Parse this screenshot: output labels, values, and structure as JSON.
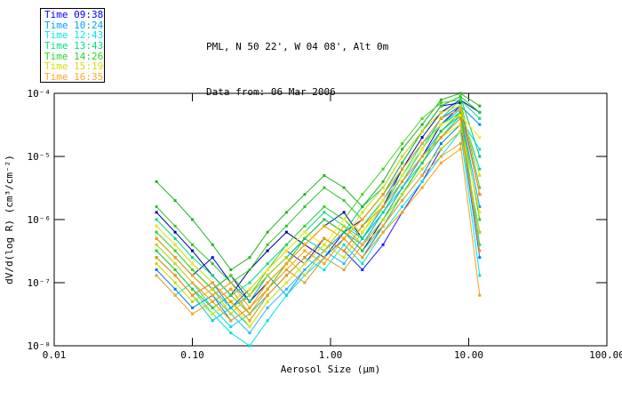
{
  "header": {
    "line1": "PML, N 50 22', W 04 08', Alt 0m",
    "line2": "Data from: 06 Mar 2006"
  },
  "legend": {
    "position": "outside-top-left",
    "items": [
      {
        "label": "Time 09:38",
        "color": "#0000ff"
      },
      {
        "label": "Time 10:24",
        "color": "#00a0ff"
      },
      {
        "label": "Time 12:43",
        "color": "#00e8e8"
      },
      {
        "label": "Time 13:43",
        "color": "#00e080"
      },
      {
        "label": "Time 14:26",
        "color": "#2ed02e"
      },
      {
        "label": "Time 15:19",
        "color": "#d4e000"
      },
      {
        "label": "Time 16:35",
        "color": "#ffa428"
      }
    ]
  },
  "chart_data": {
    "type": "line",
    "xscale": "log",
    "yscale": "log",
    "grid": false,
    "marker": "square",
    "xlim": [
      0.01,
      100
    ],
    "ylim": [
      1e-08,
      0.0001
    ],
    "xlabel": "Aerosol Size (μm)",
    "ylabel": "dV/d(log R) (cm³/cm⁻²)",
    "x_ticks": [
      {
        "value": 0.01,
        "label": "0.01"
      },
      {
        "value": 0.1,
        "label": "0.10"
      },
      {
        "value": 1,
        "label": "1.00"
      },
      {
        "value": 10,
        "label": "10.00"
      },
      {
        "value": 100,
        "label": "100.00"
      }
    ],
    "y_ticks": [
      {
        "value": 0.0001,
        "label": "10⁻⁴"
      },
      {
        "value": 1e-05,
        "label": "10⁻⁵"
      },
      {
        "value": 1e-06,
        "label": "10⁻⁶"
      },
      {
        "value": 1e-07,
        "label": "10⁻⁷"
      },
      {
        "value": 1e-08,
        "label": "10⁻⁸"
      }
    ],
    "x": [
      0.055,
      0.075,
      0.1,
      0.14,
      0.19,
      0.26,
      0.35,
      0.48,
      0.65,
      0.9,
      1.25,
      1.7,
      2.4,
      3.3,
      4.6,
      6.3,
      8.7,
      12.0
    ],
    "series": [
      {
        "name": "Time 09:38",
        "color": "#0000e0",
        "values": [
          5e-07,
          2.5e-07,
          1.3e-07,
          2.5e-07,
          1e-07,
          5e-08,
          1.3e-07,
          2.5e-07,
          5e-07,
          1e-06,
          6.3e-07,
          3.2e-07,
          1e-06,
          3.2e-06,
          1e-05,
          3.2e-05,
          6.3e-05,
          2.5e-06
        ]
      },
      {
        "name": "Time 09:38",
        "color": "#000090",
        "values": [
          1.3e-06,
          6.3e-07,
          3.2e-07,
          1.3e-07,
          6.3e-08,
          1.6e-07,
          3.2e-07,
          6.3e-07,
          4e-07,
          7.9e-07,
          1.3e-06,
          5e-07,
          1.6e-06,
          6.3e-06,
          2e-05,
          5e-05,
          7.9e-05,
          5e-05
        ]
      },
      {
        "name": "Time 09:38",
        "color": "#1a1aff",
        "values": [
          2.5e-07,
          1.3e-07,
          6.3e-08,
          1e-07,
          4e-08,
          7.9e-08,
          1.6e-07,
          3.2e-07,
          2e-07,
          5e-07,
          3.2e-07,
          1.6e-07,
          4e-07,
          1.3e-06,
          4e-06,
          1.3e-05,
          2.5e-05,
          6.3e-07
        ]
      },
      {
        "name": "Time 09:38",
        "color": "#0000b0",
        "values": [
          null,
          null,
          1.6e-07,
          7.9e-08,
          1.3e-07,
          5e-08,
          1e-07,
          2e-07,
          4e-07,
          2.5e-07,
          6.3e-07,
          1e-06,
          2.5e-06,
          7.9e-06,
          2.5e-05,
          6.3e-05,
          7.1e-05,
          null
        ]
      },
      {
        "name": "Time 10:24",
        "color": "#0087ff",
        "values": [
          4e-07,
          2e-07,
          1e-07,
          5e-08,
          7.9e-08,
          3.2e-08,
          6.3e-08,
          1.3e-07,
          2.5e-07,
          5e-07,
          3.2e-07,
          7.9e-07,
          2e-06,
          6.3e-06,
          1.6e-05,
          4e-05,
          6.3e-05,
          3.2e-05
        ]
      },
      {
        "name": "Time 10:24",
        "color": "#00a0ff",
        "values": [
          7.9e-07,
          4e-07,
          2e-07,
          1e-07,
          4e-08,
          6.3e-08,
          1.3e-07,
          6.3e-08,
          1.6e-07,
          3.2e-07,
          6.3e-07,
          4e-07,
          1.3e-06,
          4e-06,
          1e-05,
          2.5e-05,
          5e-05,
          1.6e-06
        ]
      },
      {
        "name": "Time 10:24",
        "color": "#0078e8",
        "values": [
          1.6e-07,
          7.9e-08,
          4e-08,
          6.3e-08,
          2.5e-08,
          4e-08,
          7.9e-08,
          1.6e-07,
          1e-07,
          2.5e-07,
          5e-07,
          2.5e-07,
          7.9e-07,
          2e-06,
          5e-06,
          1.6e-05,
          3.2e-05,
          2.5e-07
        ]
      },
      {
        "name": "Time 10:24",
        "color": "#33b1ff",
        "values": [
          null,
          2.5e-07,
          1.3e-07,
          6.3e-08,
          3.2e-08,
          1.6e-08,
          4e-08,
          7.9e-08,
          1.6e-07,
          3.2e-07,
          2e-07,
          5e-07,
          1.3e-06,
          3.2e-06,
          1e-05,
          2e-05,
          4e-05,
          null
        ]
      },
      {
        "name": "Time 12:43",
        "color": "#00e0e0",
        "values": [
          3.2e-07,
          1.6e-07,
          7.9e-08,
          3.2e-08,
          1.6e-08,
          1e-08,
          2.5e-08,
          6.3e-08,
          1.3e-07,
          2.5e-07,
          1.6e-07,
          4e-07,
          1e-06,
          2.5e-06,
          7.9e-06,
          2e-05,
          4e-05,
          1.3e-05
        ]
      },
      {
        "name": "Time 12:43",
        "color": "#00cccc",
        "values": [
          6.3e-07,
          3.2e-07,
          1.6e-07,
          7.9e-08,
          4e-08,
          6.3e-08,
          1.3e-07,
          2.5e-07,
          5e-07,
          3.2e-07,
          7.9e-07,
          5e-07,
          1.6e-06,
          5e-06,
          1.3e-05,
          3.2e-05,
          5.6e-05,
          6.3e-06
        ]
      },
      {
        "name": "Time 12:43",
        "color": "#00e0e0",
        "values": [
          1.3e-07,
          6.3e-08,
          1e-07,
          4e-08,
          2e-08,
          3.2e-08,
          6.3e-08,
          1.3e-07,
          2.5e-07,
          1.6e-07,
          4e-07,
          2e-07,
          6.3e-07,
          1.6e-06,
          4e-06,
          1e-05,
          2.5e-05,
          1.3e-07
        ]
      },
      {
        "name": "Time 12:43",
        "color": "#00cccc",
        "values": [
          null,
          null,
          6.3e-08,
          2.5e-08,
          4e-08,
          2e-08,
          5e-08,
          1e-07,
          2e-07,
          4e-07,
          2.5e-07,
          6.3e-07,
          1.6e-06,
          4e-06,
          1e-05,
          2.5e-05,
          4.5e-05,
          null
        ]
      },
      {
        "name": "Time 13:43",
        "color": "#00d88c",
        "values": [
          1e-06,
          5e-07,
          2.5e-07,
          1.3e-07,
          6.3e-08,
          1e-07,
          2e-07,
          4e-07,
          7.9e-07,
          1.6e-06,
          1e-06,
          5e-07,
          1.3e-06,
          4e-06,
          1.3e-05,
          4e-05,
          7.9e-05,
          4e-05
        ]
      },
      {
        "name": "Time 13:43",
        "color": "#00c87a",
        "values": [
          5e-07,
          2.5e-07,
          1.3e-07,
          6.3e-08,
          1e-07,
          5e-08,
          1.3e-07,
          2.5e-07,
          5e-07,
          1e-06,
          6.3e-07,
          1.6e-06,
          3.2e-06,
          1e-05,
          2.5e-05,
          6.3e-05,
          8.9e-05,
          1e-05
        ]
      },
      {
        "name": "Time 13:43",
        "color": "#00e096",
        "values": [
          2.5e-07,
          1.3e-07,
          6.3e-08,
          3.2e-08,
          5e-08,
          2.5e-08,
          6.3e-08,
          1.3e-07,
          2.5e-07,
          5e-07,
          3.2e-07,
          7.9e-07,
          2e-06,
          5e-06,
          1.6e-05,
          3.2e-05,
          5e-05,
          4e-07
        ]
      },
      {
        "name": "Time 13:43",
        "color": "#00d88c",
        "values": [
          null,
          4e-07,
          2e-07,
          1e-07,
          5e-08,
          7.9e-08,
          1.6e-07,
          3.2e-07,
          6.3e-07,
          1.3e-06,
          7.9e-07,
          4e-07,
          1e-06,
          3.2e-06,
          7.9e-06,
          2e-05,
          4.5e-05,
          null
        ]
      },
      {
        "name": "Time 14:26",
        "color": "#2ec82e",
        "values": [
          1.6e-06,
          7.9e-07,
          4e-07,
          2e-07,
          1e-07,
          1.6e-07,
          4e-07,
          7.9e-07,
          1.6e-06,
          3.2e-06,
          2e-06,
          1e-06,
          2.5e-06,
          7.9e-06,
          2.5e-05,
          6.3e-05,
          8.9e-05,
          5e-05
        ]
      },
      {
        "name": "Time 14:26",
        "color": "#22b422",
        "values": [
          4e-06,
          2e-06,
          1e-06,
          4e-07,
          1.6e-07,
          2.5e-07,
          6.3e-07,
          1.3e-06,
          2.5e-06,
          5e-06,
          3.2e-06,
          1.6e-06,
          4e-06,
          1.3e-05,
          3.2e-05,
          7.9e-05,
          0.0001,
          6.3e-05
        ]
      },
      {
        "name": "Time 14:26",
        "color": "#44d226",
        "values": [
          6.3e-07,
          3.2e-07,
          1.6e-07,
          7.9e-08,
          1.3e-07,
          6.3e-08,
          1.6e-07,
          4e-07,
          7.9e-07,
          1.6e-06,
          1e-06,
          2.5e-06,
          6.3e-06,
          1.6e-05,
          4e-05,
          7.1e-05,
          7.9e-05,
          3.2e-06
        ]
      },
      {
        "name": "Time 14:26",
        "color": "#2ec82e",
        "values": [
          3.2e-07,
          1.6e-07,
          7.9e-08,
          4e-08,
          6.3e-08,
          3.2e-08,
          7.9e-08,
          2e-07,
          5e-07,
          1e-06,
          6.3e-07,
          3.2e-07,
          7.9e-07,
          2.5e-06,
          7.9e-06,
          2.5e-05,
          5e-05,
          1e-06
        ]
      },
      {
        "name": "Time 15:19",
        "color": "#d2dc00",
        "values": [
          4e-07,
          2e-07,
          1e-07,
          5e-08,
          2.5e-08,
          4e-08,
          1e-07,
          2e-07,
          4e-07,
          7.9e-07,
          5e-07,
          1.3e-06,
          3.2e-06,
          1e-05,
          2.5e-05,
          5e-05,
          6.3e-05,
          5e-06
        ]
      },
      {
        "name": "Time 15:19",
        "color": "#ffe800",
        "values": [
          7.9e-07,
          4e-07,
          2e-07,
          1e-07,
          5e-08,
          7.9e-08,
          1.6e-07,
          3.2e-07,
          6.3e-07,
          4e-07,
          1e-06,
          6.3e-07,
          2e-06,
          5e-06,
          1.3e-05,
          3.2e-05,
          4.5e-05,
          2e-05
        ]
      },
      {
        "name": "Time 15:19",
        "color": "#e6e600",
        "values": [
          null,
          1.3e-07,
          6.3e-08,
          3.2e-08,
          5e-08,
          2e-08,
          5e-08,
          1e-07,
          2e-07,
          4e-07,
          2.5e-07,
          6.3e-07,
          1.6e-06,
          4e-06,
          1e-05,
          2e-05,
          3.2e-05,
          1.3e-06
        ]
      },
      {
        "name": "Time 15:19",
        "color": "#c8d200",
        "values": [
          2e-07,
          1e-07,
          5e-08,
          7.9e-08,
          3.2e-08,
          6.3e-08,
          1.3e-07,
          2.5e-07,
          1.3e-07,
          3.2e-07,
          7.9e-07,
          4e-07,
          1e-06,
          2.5e-06,
          6.3e-06,
          1.3e-05,
          2.5e-05,
          6.3e-07
        ]
      },
      {
        "name": "Time 16:35",
        "color": "#ffa000",
        "values": [
          5e-07,
          2.5e-07,
          1.3e-07,
          6.3e-08,
          1e-07,
          4e-08,
          1e-07,
          2e-07,
          4e-07,
          7.9e-07,
          5e-07,
          1e-06,
          2.5e-06,
          6.3e-06,
          1.6e-05,
          4e-05,
          5.6e-05,
          2.5e-06
        ]
      },
      {
        "name": "Time 16:35",
        "color": "#ff9000",
        "values": [
          2.5e-07,
          1.3e-07,
          6.3e-08,
          1e-07,
          5e-08,
          2.5e-08,
          6.3e-08,
          1.3e-07,
          2.5e-07,
          5e-07,
          3.2e-07,
          7.9e-07,
          1.6e-06,
          4e-06,
          1e-05,
          2e-05,
          4e-05,
          3.2e-07
        ]
      },
      {
        "name": "Time 16:35",
        "color": "#f0a028",
        "values": [
          1.3e-07,
          6.3e-08,
          3.2e-08,
          5e-08,
          2.5e-08,
          4e-08,
          7.9e-08,
          1.6e-07,
          1e-07,
          2.5e-07,
          1.6e-07,
          4e-07,
          7.9e-07,
          2e-06,
          5e-06,
          1e-05,
          1.6e-05,
          6.3e-08
        ]
      },
      {
        "name": "Time 16:35",
        "color": "#ffa000",
        "values": [
          null,
          null,
          1e-07,
          5e-08,
          7.9e-08,
          3.2e-08,
          7.9e-08,
          1.6e-07,
          3.2e-07,
          2e-07,
          5e-07,
          2.5e-07,
          6.3e-07,
          1.3e-06,
          3.2e-06,
          7.9e-06,
          1.3e-05,
          null
        ]
      }
    ]
  }
}
